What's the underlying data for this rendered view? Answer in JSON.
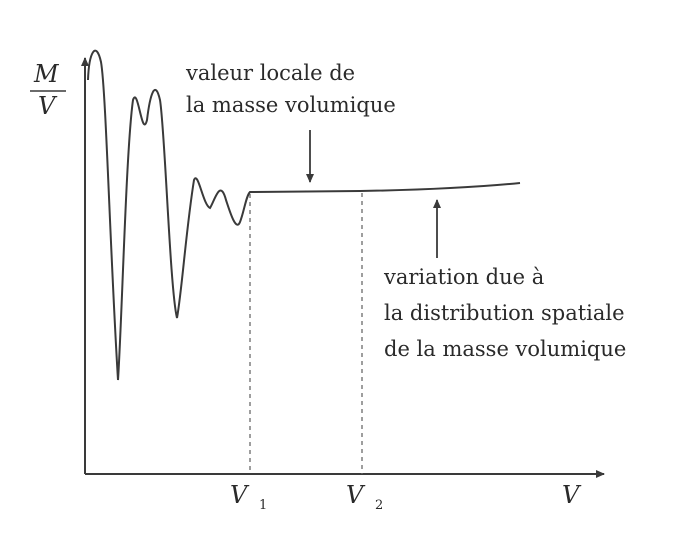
{
  "diagram": {
    "y_axis": {
      "numerator": "M",
      "denominator": "V"
    },
    "x_axis": {
      "label": "V"
    },
    "ticks": [
      {
        "symbol": "V",
        "subscript": "1"
      },
      {
        "symbol": "V",
        "subscript": "2"
      }
    ],
    "annotations": {
      "local_value": {
        "lines": [
          "valeur locale de",
          "la masse volumique"
        ]
      },
      "spatial_variation": {
        "lines": [
          "variation due à",
          "la distribution spatiale",
          "de la masse volumique"
        ]
      }
    }
  }
}
